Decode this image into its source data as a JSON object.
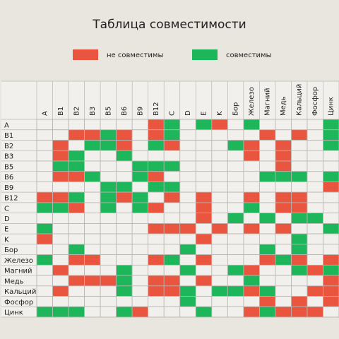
{
  "header": {
    "title": "Таблица совместимости"
  },
  "legend": [
    {
      "label": "не совместимы",
      "color": "#e9553f",
      "pairs": [
        [
          "A",
          "B12"
        ],
        [
          "A",
          "K"
        ],
        [
          "B1",
          "B2"
        ],
        [
          "B1",
          "B3"
        ],
        [
          "B1",
          "B6"
        ],
        [
          "B1",
          "B12"
        ],
        [
          "B1",
          "Магний"
        ],
        [
          "B1",
          "Кальций"
        ],
        [
          "B2",
          "B6"
        ],
        [
          "B2",
          "C"
        ],
        [
          "B2",
          "Железо"
        ],
        [
          "B2",
          "Медь"
        ],
        [
          "B3",
          "Железо"
        ],
        [
          "B3",
          "Медь"
        ],
        [
          "B5",
          "Медь"
        ],
        [
          "B6",
          "B12"
        ],
        [
          "B9",
          "Цинк"
        ],
        [
          "B12",
          "C"
        ],
        [
          "B12",
          "E"
        ],
        [
          "B12",
          "Железо"
        ],
        [
          "B12",
          "Медь"
        ],
        [
          "B12",
          "Кальций"
        ],
        [
          "C",
          "E"
        ],
        [
          "C",
          "Медь"
        ],
        [
          "C",
          "Кальций"
        ],
        [
          "D",
          "E"
        ],
        [
          "E",
          "K"
        ],
        [
          "E",
          "Железо"
        ],
        [
          "E",
          "Медь"
        ],
        [
          "Железо",
          "Магний"
        ],
        [
          "Железо",
          "Кальций"
        ],
        [
          "Железо",
          "Цинк"
        ],
        [
          "Магний",
          "Фосфор"
        ],
        [
          "Медь",
          "Цинк"
        ],
        [
          "Кальций",
          "Фосфор"
        ],
        [
          "Кальций",
          "Цинк"
        ],
        [
          "Фосфор",
          "Цинк"
        ]
      ]
    },
    {
      "label": "совместимы",
      "color": "#1db65a",
      "pairs": [
        [
          "A",
          "C"
        ],
        [
          "A",
          "E"
        ],
        [
          "A",
          "Железо"
        ],
        [
          "A",
          "Цинк"
        ],
        [
          "B1",
          "B5"
        ],
        [
          "B1",
          "C"
        ],
        [
          "B1",
          "Цинк"
        ],
        [
          "B2",
          "B3"
        ],
        [
          "B2",
          "B5"
        ],
        [
          "B2",
          "B12"
        ],
        [
          "B2",
          "Бор"
        ],
        [
          "B2",
          "Цинк"
        ],
        [
          "B3",
          "B6"
        ],
        [
          "B5",
          "B9"
        ],
        [
          "B5",
          "B12"
        ],
        [
          "B5",
          "C"
        ],
        [
          "B6",
          "B9"
        ],
        [
          "B6",
          "Магний"
        ],
        [
          "B6",
          "Кальций"
        ],
        [
          "B6",
          "Цинк"
        ],
        [
          "B9",
          "B12"
        ],
        [
          "B9",
          "C"
        ],
        [
          "C",
          "Железо"
        ],
        [
          "D",
          "Бор"
        ],
        [
          "D",
          "Магний"
        ],
        [
          "D",
          "Кальций"
        ],
        [
          "D",
          "Фосфор"
        ],
        [
          "E",
          "Цинк"
        ],
        [
          "K",
          "Кальций"
        ],
        [
          "Бор",
          "Магний"
        ],
        [
          "Бор",
          "Кальций"
        ],
        [
          "Железо",
          "Медь"
        ],
        [
          "Магний",
          "Кальций"
        ],
        [
          "Магний",
          "Цинк"
        ],
        [
          "B6",
          "Медь"
        ]
      ]
    }
  ],
  "table": {
    "labels": [
      "A",
      "B1",
      "B2",
      "B3",
      "B5",
      "B6",
      "B9",
      "B12",
      "C",
      "D",
      "E",
      "K",
      "Бор",
      "Железо",
      "Магний",
      "Медь",
      "Кальций",
      "Фосфор",
      "Цинк"
    ]
  }
}
